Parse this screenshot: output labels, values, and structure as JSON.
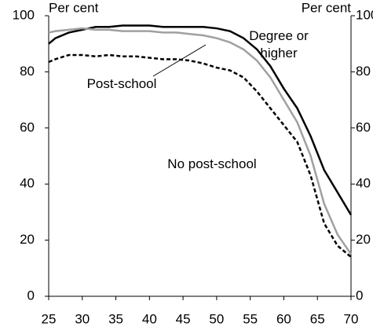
{
  "chart_data": {
    "type": "line",
    "y_label": "Per cent",
    "y2_label": "Per cent",
    "x": [
      25,
      26,
      28,
      30,
      32,
      34,
      36,
      38,
      40,
      42,
      44,
      46,
      48,
      50,
      52,
      54,
      56,
      58,
      60,
      62,
      64,
      66,
      68,
      70
    ],
    "series": [
      {
        "name": "Degree or higher",
        "color": "#000000",
        "dash": false,
        "values": [
          90,
          92,
          94,
          95,
          96,
          96,
          96.5,
          96.5,
          96.5,
          96,
          96,
          96,
          96,
          95.5,
          94.5,
          92,
          88,
          82,
          74,
          67,
          57,
          45,
          37,
          29
        ]
      },
      {
        "name": "Post-school",
        "color": "#a0a0a0",
        "dash": false,
        "values": [
          94,
          94.5,
          95,
          95.5,
          95,
          95,
          94.5,
          94.5,
          94.5,
          94,
          94,
          93.5,
          93,
          92,
          90.5,
          88,
          84,
          78,
          70,
          62,
          50,
          33,
          22,
          15
        ]
      },
      {
        "name": "No post-school",
        "color": "#000000",
        "dash": true,
        "values": [
          83.5,
          84.5,
          86,
          86,
          85.5,
          86,
          85.5,
          85.5,
          85,
          84.5,
          84.5,
          84,
          83,
          81.5,
          80.5,
          78,
          73,
          67,
          61,
          55,
          43,
          26,
          18,
          14
        ]
      }
    ],
    "xlim": [
      25,
      70
    ],
    "xticks": [
      25,
      30,
      35,
      40,
      45,
      50,
      55,
      60,
      65,
      70
    ],
    "ylim": [
      0,
      100
    ],
    "yticks": [
      0,
      20,
      40,
      60,
      80,
      100
    ],
    "y2lim": [
      0,
      100
    ],
    "y2ticks": [
      0,
      20,
      40,
      60,
      80,
      100
    ]
  }
}
